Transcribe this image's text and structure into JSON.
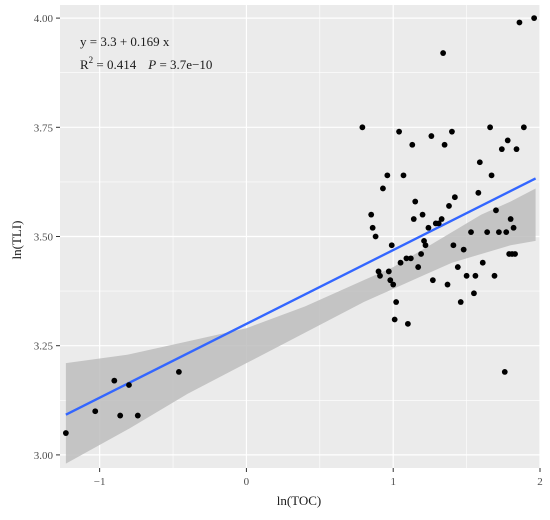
{
  "chart_data": {
    "type": "scatter",
    "xlabel": "ln(TOC)",
    "ylabel": "ln(TLI)",
    "xlim": [
      -1.27,
      2.0
    ],
    "ylim": [
      2.97,
      4.03
    ],
    "x_ticks": [
      -1,
      0,
      1,
      2
    ],
    "x_tick_labels": [
      "−1",
      "0",
      "1",
      "2"
    ],
    "y_ticks": [
      3.0,
      3.25,
      3.5,
      3.75,
      4.0
    ],
    "y_tick_labels": [
      "3.00",
      "3.25",
      "3.50",
      "3.75",
      "4.00"
    ],
    "grid": true,
    "background": "#ebebeb",
    "grid_color": "#ffffff",
    "point_color": "#000000",
    "fit_line_color": "#3366ff",
    "ci_band_color": "#bdbdbd",
    "annotations": {
      "equation": "y = 3.3 + 0.169 x",
      "r2_label": "R",
      "r2_sup": "2",
      "r2_value": " = 0.414",
      "p_label": "P",
      "p_value": " = 3.7e−10"
    },
    "regression": {
      "intercept": 3.3,
      "slope": 0.169
    },
    "confidence_band": {
      "x": [
        -1.23,
        -0.8,
        -0.4,
        0.0,
        0.4,
        0.8,
        1.0,
        1.2,
        1.4,
        1.6,
        1.8,
        1.97
      ],
      "lower": [
        2.98,
        3.06,
        3.14,
        3.21,
        3.28,
        3.35,
        3.38,
        3.41,
        3.44,
        3.46,
        3.48,
        3.49
      ],
      "upper": [
        3.21,
        3.23,
        3.26,
        3.29,
        3.34,
        3.4,
        3.43,
        3.47,
        3.51,
        3.55,
        3.58,
        3.61
      ]
    },
    "points": [
      {
        "x": -1.23,
        "y": 3.05
      },
      {
        "x": -1.03,
        "y": 3.1
      },
      {
        "x": -0.9,
        "y": 3.17
      },
      {
        "x": -0.86,
        "y": 3.09
      },
      {
        "x": -0.8,
        "y": 3.16
      },
      {
        "x": -0.74,
        "y": 3.09
      },
      {
        "x": -0.46,
        "y": 3.19
      },
      {
        "x": 0.79,
        "y": 3.75
      },
      {
        "x": 0.85,
        "y": 3.55
      },
      {
        "x": 0.86,
        "y": 3.52
      },
      {
        "x": 0.88,
        "y": 3.5
      },
      {
        "x": 0.9,
        "y": 3.42
      },
      {
        "x": 0.91,
        "y": 3.41
      },
      {
        "x": 0.93,
        "y": 3.61
      },
      {
        "x": 0.96,
        "y": 3.64
      },
      {
        "x": 0.97,
        "y": 3.42
      },
      {
        "x": 0.98,
        "y": 3.4
      },
      {
        "x": 0.99,
        "y": 3.48
      },
      {
        "x": 1.0,
        "y": 3.39
      },
      {
        "x": 1.01,
        "y": 3.31
      },
      {
        "x": 1.02,
        "y": 3.35
      },
      {
        "x": 1.04,
        "y": 3.74
      },
      {
        "x": 1.05,
        "y": 3.44
      },
      {
        "x": 1.07,
        "y": 3.64
      },
      {
        "x": 1.09,
        "y": 3.45
      },
      {
        "x": 1.1,
        "y": 3.3
      },
      {
        "x": 1.12,
        "y": 3.45
      },
      {
        "x": 1.13,
        "y": 3.71
      },
      {
        "x": 1.14,
        "y": 3.54
      },
      {
        "x": 1.15,
        "y": 3.58
      },
      {
        "x": 1.17,
        "y": 3.43
      },
      {
        "x": 1.19,
        "y": 3.46
      },
      {
        "x": 1.2,
        "y": 3.55
      },
      {
        "x": 1.21,
        "y": 3.49
      },
      {
        "x": 1.22,
        "y": 3.48
      },
      {
        "x": 1.24,
        "y": 3.52
      },
      {
        "x": 1.26,
        "y": 3.73
      },
      {
        "x": 1.27,
        "y": 3.4
      },
      {
        "x": 1.29,
        "y": 3.53
      },
      {
        "x": 1.31,
        "y": 3.53
      },
      {
        "x": 1.33,
        "y": 3.54
      },
      {
        "x": 1.34,
        "y": 3.92
      },
      {
        "x": 1.35,
        "y": 3.71
      },
      {
        "x": 1.37,
        "y": 3.39
      },
      {
        "x": 1.38,
        "y": 3.57
      },
      {
        "x": 1.4,
        "y": 3.74
      },
      {
        "x": 1.41,
        "y": 3.48
      },
      {
        "x": 1.42,
        "y": 3.59
      },
      {
        "x": 1.44,
        "y": 3.43
      },
      {
        "x": 1.46,
        "y": 3.35
      },
      {
        "x": 1.48,
        "y": 3.47
      },
      {
        "x": 1.5,
        "y": 3.41
      },
      {
        "x": 1.53,
        "y": 3.51
      },
      {
        "x": 1.55,
        "y": 3.37
      },
      {
        "x": 1.56,
        "y": 3.41
      },
      {
        "x": 1.58,
        "y": 3.6
      },
      {
        "x": 1.59,
        "y": 3.67
      },
      {
        "x": 1.61,
        "y": 3.44
      },
      {
        "x": 1.64,
        "y": 3.51
      },
      {
        "x": 1.66,
        "y": 3.75
      },
      {
        "x": 1.67,
        "y": 3.64
      },
      {
        "x": 1.69,
        "y": 3.41
      },
      {
        "x": 1.7,
        "y": 3.56
      },
      {
        "x": 1.72,
        "y": 3.51
      },
      {
        "x": 1.74,
        "y": 3.7
      },
      {
        "x": 1.76,
        "y": 3.19
      },
      {
        "x": 1.77,
        "y": 3.51
      },
      {
        "x": 1.78,
        "y": 3.72
      },
      {
        "x": 1.79,
        "y": 3.46
      },
      {
        "x": 1.8,
        "y": 3.54
      },
      {
        "x": 1.81,
        "y": 3.46
      },
      {
        "x": 1.82,
        "y": 3.52
      },
      {
        "x": 1.83,
        "y": 3.46
      },
      {
        "x": 1.84,
        "y": 3.7
      },
      {
        "x": 1.86,
        "y": 3.99
      },
      {
        "x": 1.89,
        "y": 3.75
      },
      {
        "x": 1.96,
        "y": 4.0
      }
    ]
  }
}
